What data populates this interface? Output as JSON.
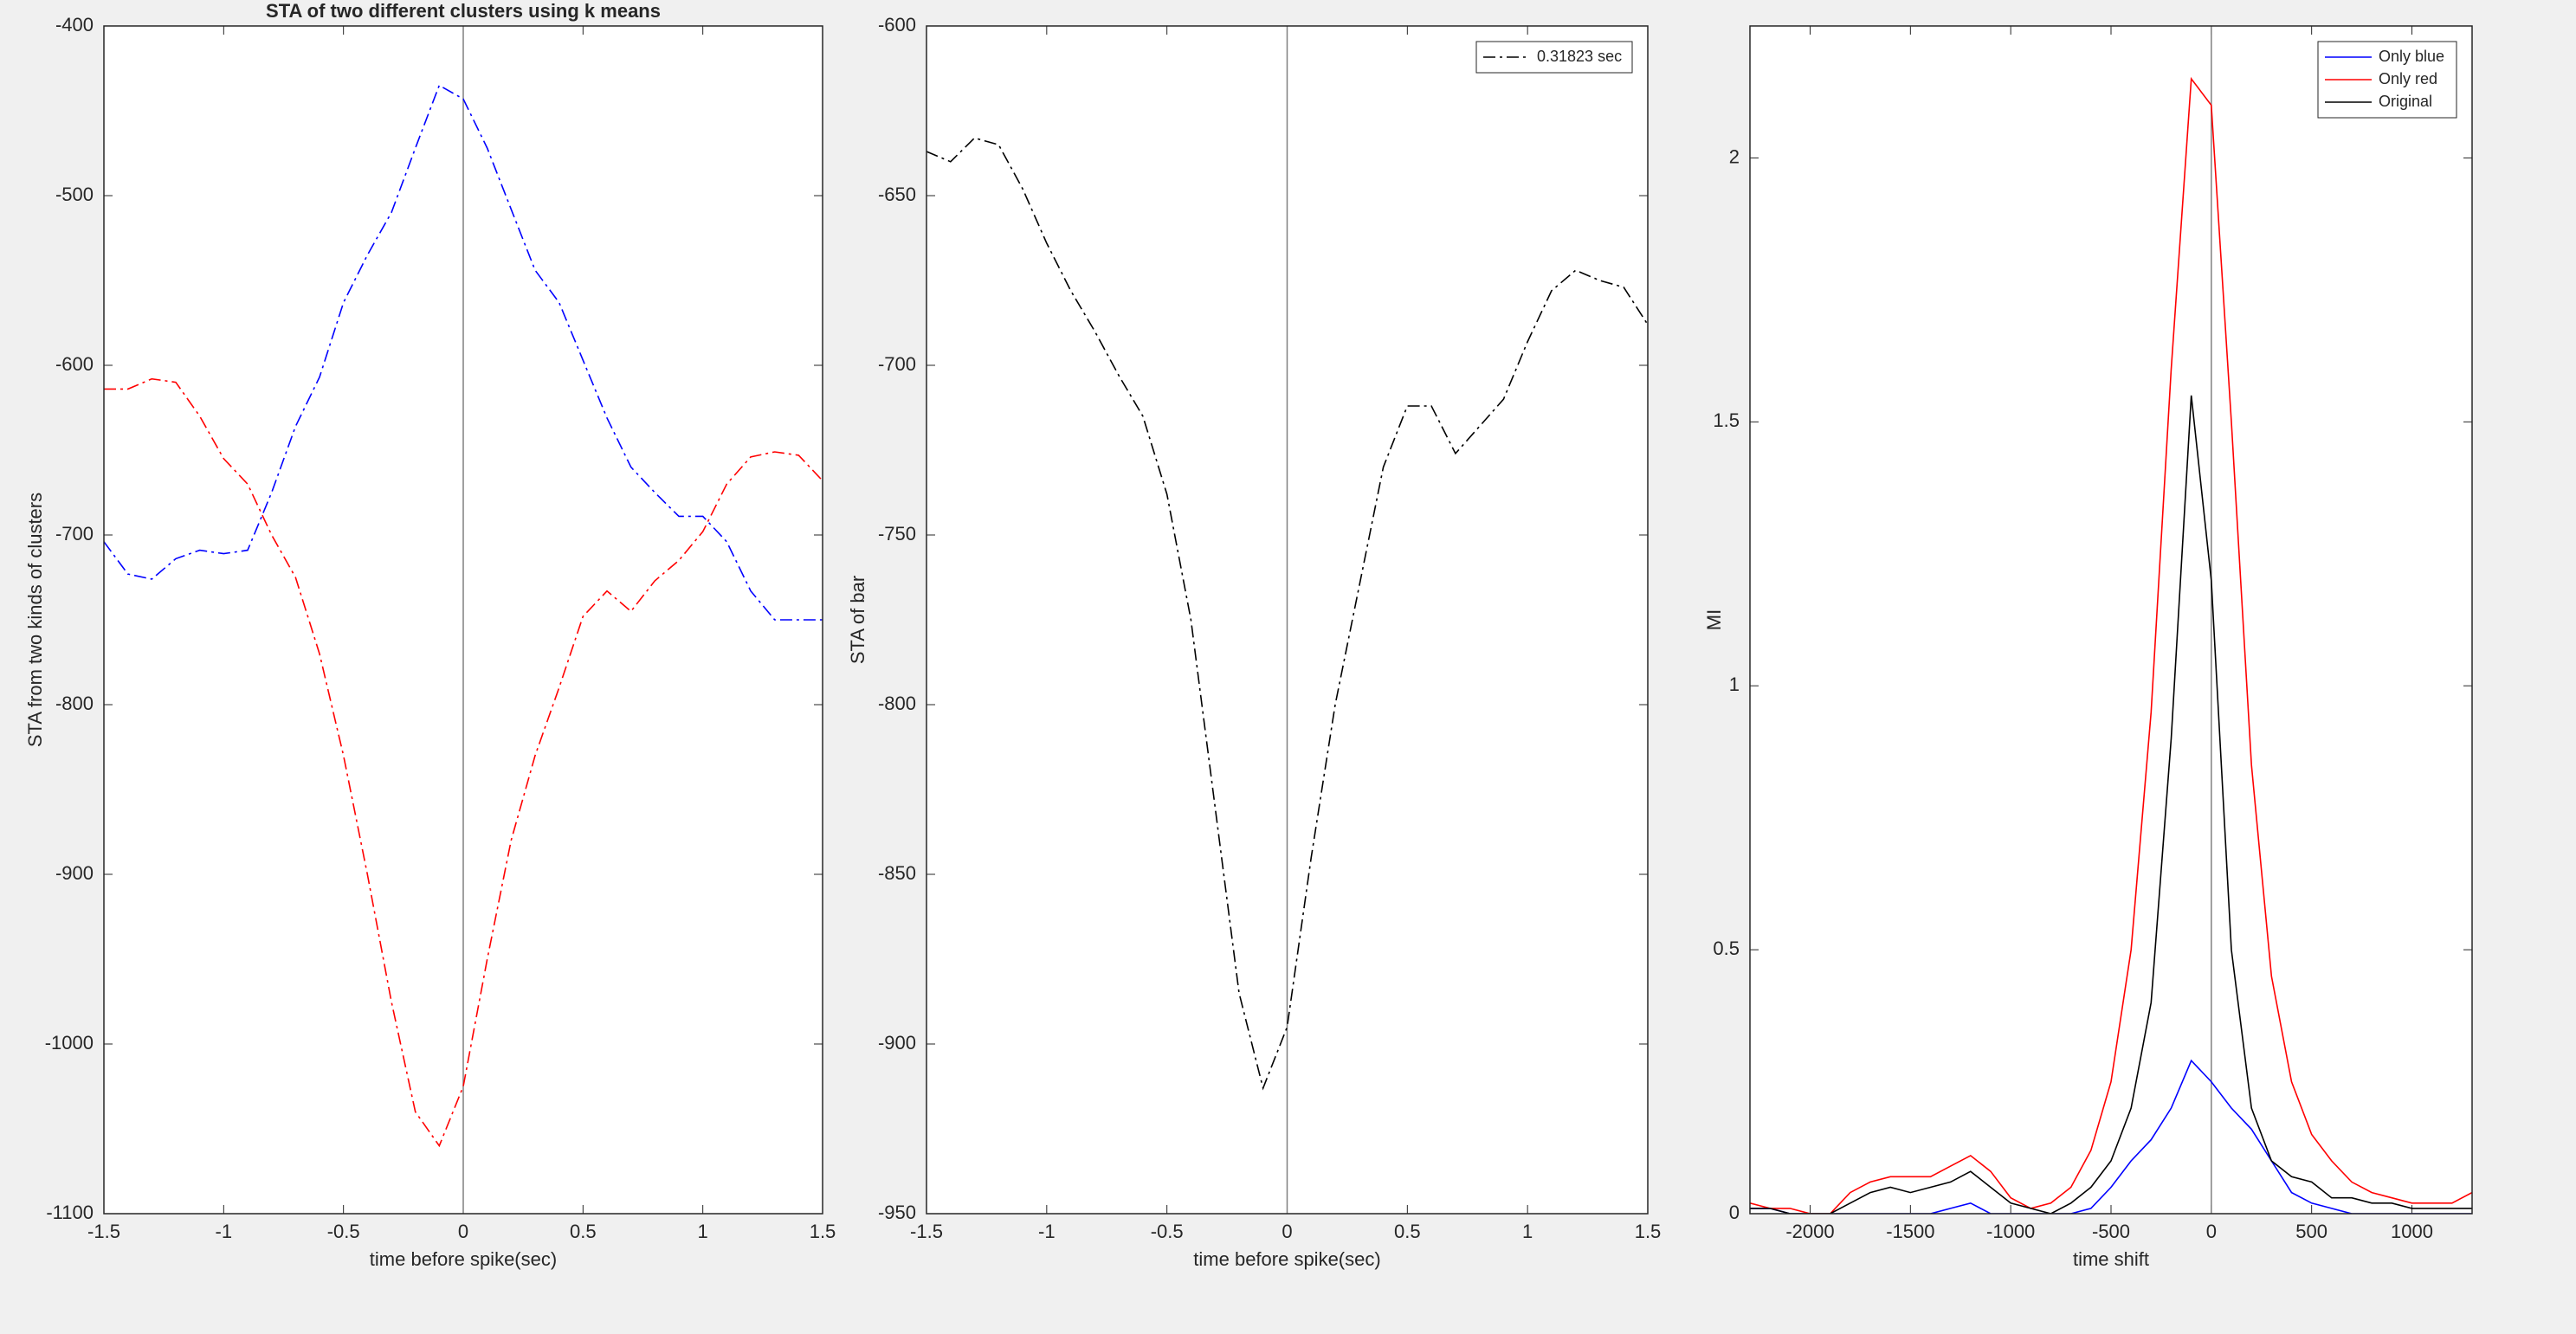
{
  "chart_data": [
    {
      "type": "line",
      "title": "STA of two different clusters using k means",
      "x_label": "time before spike(sec)",
      "y_label": "STA from two kinds of clusters",
      "x": [
        -1.5,
        -1.4,
        -1.3,
        -1.2,
        -1.1,
        -1.0,
        -0.9,
        -0.8,
        -0.7,
        -0.6,
        -0.5,
        -0.4,
        -0.3,
        -0.2,
        -0.1,
        0,
        0.1,
        0.2,
        0.3,
        0.4,
        0.5,
        0.6,
        0.7,
        0.8,
        0.9,
        1.0,
        1.1,
        1.2,
        1.3,
        1.4,
        1.5
      ],
      "series": [
        {
          "color": "#0000ff",
          "values": [
            -704,
            -723,
            -726,
            -714,
            -709,
            -711,
            -709,
            -675,
            -636,
            -607,
            -563,
            -535,
            -510,
            -472,
            -435,
            -443,
            -472,
            -508,
            -544,
            -563,
            -597,
            -631,
            -660,
            -675,
            -689,
            -689,
            -704,
            -733,
            -750,
            -750,
            -750
          ]
        },
        {
          "color": "#ff0000",
          "values": [
            -614,
            -614,
            -608,
            -610,
            -630,
            -655,
            -670,
            -700,
            -725,
            -770,
            -830,
            -900,
            -975,
            -1040,
            -1060,
            -1025,
            -950,
            -880,
            -830,
            -790,
            -748,
            -733,
            -745,
            -727,
            -715,
            -698,
            -670,
            -654,
            -651,
            -653,
            -668
          ]
        }
      ],
      "line_style": "dash-dot",
      "vline": 0,
      "xlim": [
        -1.5,
        1.5
      ],
      "xticks": [
        -1.5,
        -1,
        -0.5,
        0,
        0.5,
        1,
        1.5
      ],
      "ylim": [
        -1100,
        -400
      ],
      "yticks": [
        -1100,
        -1000,
        -900,
        -800,
        -700,
        -600,
        -500,
        -400
      ]
    },
    {
      "type": "line",
      "x_label": "time before spike(sec)",
      "y_label": "STA of bar",
      "x": [
        -1.5,
        -1.4,
        -1.3,
        -1.2,
        -1.1,
        -1.0,
        -0.9,
        -0.8,
        -0.7,
        -0.6,
        -0.5,
        -0.4,
        -0.3,
        -0.2,
        -0.1,
        0,
        0.1,
        0.2,
        0.3,
        0.4,
        0.5,
        0.6,
        0.7,
        0.8,
        0.9,
        1.0,
        1.1,
        1.2,
        1.3,
        1.4,
        1.5
      ],
      "series": [
        {
          "name": "0.31823 sec",
          "color": "#000000",
          "values": [
            -637,
            -640,
            -633,
            -635,
            -648,
            -664,
            -678,
            -690,
            -703,
            -715,
            -738,
            -775,
            -830,
            -885,
            -913,
            -895,
            -845,
            -800,
            -765,
            -730,
            -712,
            -712,
            -726,
            -718,
            -710,
            -693,
            -678,
            -672,
            -675,
            -677,
            -688
          ]
        }
      ],
      "line_style": "dash-dot",
      "vline": 0,
      "legend": "northeast",
      "xlim": [
        -1.5,
        1.5
      ],
      "xticks": [
        -1.5,
        -1,
        -0.5,
        0,
        0.5,
        1,
        1.5
      ],
      "ylim": [
        -950,
        -600
      ],
      "yticks": [
        -950,
        -900,
        -850,
        -800,
        -750,
        -700,
        -650,
        -600
      ]
    },
    {
      "type": "line",
      "x_label": "time shift",
      "y_label": "MI",
      "x": [
        -2300,
        -2200,
        -2100,
        -2000,
        -1900,
        -1800,
        -1700,
        -1600,
        -1500,
        -1400,
        -1300,
        -1200,
        -1100,
        -1000,
        -900,
        -800,
        -700,
        -600,
        -500,
        -400,
        -300,
        -200,
        -100,
        0,
        100,
        200,
        300,
        400,
        500,
        600,
        700,
        800,
        900,
        1000,
        1100,
        1200,
        1300
      ],
      "series": [
        {
          "name": "Only blue",
          "color": "#0000ff",
          "values": [
            0.01,
            0.01,
            0,
            0,
            0,
            0,
            0,
            0,
            0,
            0,
            0.01,
            0.02,
            0,
            0,
            0,
            0,
            0,
            0.01,
            0.05,
            0.1,
            0.14,
            0.2,
            0.29,
            0.25,
            0.2,
            0.16,
            0.1,
            0.04,
            0.02,
            0.01,
            0,
            0,
            0,
            0,
            0,
            0,
            0
          ]
        },
        {
          "name": "Only red",
          "color": "#ff0000",
          "values": [
            0.02,
            0.01,
            0.01,
            0,
            0,
            0.04,
            0.06,
            0.07,
            0.07,
            0.07,
            0.09,
            0.11,
            0.08,
            0.03,
            0.01,
            0.02,
            0.05,
            0.12,
            0.25,
            0.5,
            0.95,
            1.6,
            2.15,
            2.1,
            1.5,
            0.85,
            0.45,
            0.25,
            0.15,
            0.1,
            0.06,
            0.04,
            0.03,
            0.02,
            0.02,
            0.02,
            0.04
          ]
        },
        {
          "name": "Original",
          "color": "#000000",
          "values": [
            0.01,
            0.01,
            0,
            0,
            0,
            0.02,
            0.04,
            0.05,
            0.04,
            0.05,
            0.06,
            0.08,
            0.05,
            0.02,
            0.01,
            0,
            0.02,
            0.05,
            0.1,
            0.2,
            0.4,
            0.9,
            1.55,
            1.2,
            0.5,
            0.2,
            0.1,
            0.07,
            0.06,
            0.03,
            0.03,
            0.02,
            0.02,
            0.01,
            0.01,
            0.01,
            0.01
          ]
        }
      ],
      "line_style": "solid",
      "vline": 0,
      "legend": "northeast",
      "xlim": [
        -2300,
        1300
      ],
      "xticks": [
        -2000,
        -1500,
        -1000,
        -500,
        0,
        500,
        1000
      ],
      "ylim": [
        0,
        2.25
      ],
      "yticks": [
        0,
        0.5,
        1,
        1.5,
        2
      ]
    }
  ]
}
